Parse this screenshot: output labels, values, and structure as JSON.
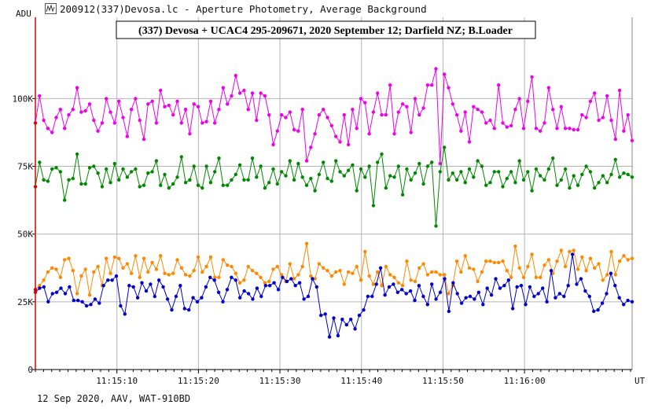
{
  "window": {
    "title": "200912(337)Devosa.lc - Aperture Photometry, Average Background",
    "icon": "lightcurve-window-icon"
  },
  "footer": "12 Sep 2020, AAV, WAT-910BD",
  "chart_data": {
    "type": "line",
    "title": "(337) Devosa + UCAC4 295-209671, 2020 September 12;  Darfield NZ;  B.Loader",
    "ylabel": "ADU",
    "xlabel": "UT",
    "ylim": [
      0,
      130000
    ],
    "y_ticks": [
      0,
      25000,
      50000,
      75000,
      100000
    ],
    "y_tick_labels": [
      "0",
      "25K",
      "50K",
      "75K",
      "100K"
    ],
    "xlim": [
      0,
      73.2
    ],
    "x_ticks": [
      10,
      20,
      30,
      40,
      50,
      60
    ],
    "x_tick_labels": [
      "11:15:10",
      "11:15:20",
      "11:15:30",
      "11:15:40",
      "11:15:50",
      "11:16:00"
    ],
    "x_minor_step": 1,
    "grid": true,
    "cursor_color": "#dd0000",
    "series": [
      {
        "color": "#ee00ee",
        "values": [
          91000,
          101000,
          92000,
          89000,
          87500,
          93000,
          96000,
          89000,
          94000,
          96000,
          104000,
          95000,
          95500,
          98000,
          92000,
          88000,
          91000,
          100000,
          95000,
          91000,
          99000,
          93000,
          86000,
          96000,
          100000,
          92000,
          85000,
          98000,
          99000,
          91000,
          103000,
          97000,
          97500,
          94000,
          99000,
          91000,
          96000,
          87000,
          98000,
          97000,
          91000,
          91500,
          99000,
          91000,
          96000,
          104000,
          98000,
          101000,
          108500,
          102000,
          103000,
          96000,
          102000,
          92000,
          102000,
          101000,
          94000,
          83000,
          88000,
          94000,
          93000,
          95000,
          88500,
          88000,
          96000,
          77000,
          82000,
          87000,
          94000,
          96000,
          93000,
          90000,
          86000,
          84000,
          94000,
          83000,
          96000,
          89000,
          100000,
          98500,
          87000,
          95000,
          102000,
          94000,
          94000,
          105000,
          87000,
          95000,
          98000,
          97000,
          87500,
          100000,
          94000,
          96500,
          105000,
          105000,
          111000,
          76000,
          109000,
          104000,
          98000,
          94000,
          88000,
          95000,
          84000,
          97000,
          96000,
          95000,
          91000,
          92000,
          89000,
          105000,
          91000,
          89500,
          90000,
          96000,
          100000,
          89000,
          99000,
          108000,
          89000,
          88000,
          91000,
          104000,
          96000,
          89000,
          97000,
          89000,
          89000,
          88500,
          88500,
          94000,
          93000,
          99000,
          102000,
          92000,
          93000,
          101000,
          92000,
          85000,
          103000,
          88000,
          94000,
          84500
        ]
      },
      {
        "color": "#008800",
        "values": [
          67500,
          76500,
          70000,
          69500,
          74000,
          74500,
          73000,
          62500,
          70000,
          70500,
          79500,
          68500,
          68500,
          74500,
          75000,
          72500,
          67500,
          74000,
          69000,
          76000,
          70000,
          74000,
          71000,
          73000,
          74000,
          67500,
          68000,
          72500,
          73000,
          77000,
          68000,
          72000,
          67000,
          68500,
          71000,
          78500,
          69000,
          70000,
          75000,
          68000,
          67000,
          75000,
          69000,
          73000,
          78000,
          68000,
          68000,
          70000,
          72000,
          75500,
          70000,
          70000,
          78000,
          71000,
          75000,
          67000,
          69000,
          74000,
          68500,
          73000,
          71500,
          77000,
          70000,
          76000,
          71000,
          68000,
          70500,
          66000,
          72000,
          76500,
          70500,
          69500,
          77000,
          73000,
          71500,
          73500,
          75500,
          66000,
          74000,
          71000,
          75000,
          60500,
          76500,
          79500,
          67000,
          71500,
          71000,
          75000,
          64500,
          74000,
          70000,
          72500,
          76000,
          68500,
          75000,
          76500,
          53000,
          73000,
          82000,
          70000,
          72500,
          70000,
          73000,
          69000,
          74000,
          71000,
          77000,
          75000,
          68000,
          69000,
          73000,
          73000,
          67500,
          70500,
          73000,
          69000,
          77000,
          70000,
          73000,
          66000,
          74000,
          71500,
          70000,
          74000,
          78000,
          68000,
          70000,
          74000,
          67000,
          71500,
          68000,
          72000,
          75000,
          73000,
          67000,
          69000,
          71500,
          69000,
          72000,
          77500,
          71000,
          72500,
          72000,
          71000
        ]
      },
      {
        "color": "#ff8800",
        "values": [
          29500,
          31000,
          33000,
          36000,
          37500,
          37000,
          34000,
          40500,
          41000,
          36500,
          28000,
          34500,
          37000,
          27500,
          36000,
          38000,
          31000,
          41000,
          35500,
          41500,
          41000,
          37500,
          39000,
          35500,
          42000,
          34000,
          41000,
          36000,
          39500,
          37000,
          42000,
          35500,
          35000,
          35500,
          40500,
          37500,
          35000,
          34500,
          36500,
          41500,
          36000,
          38000,
          41500,
          34000,
          34000,
          40500,
          38500,
          38000,
          35500,
          32000,
          33000,
          38000,
          36500,
          35500,
          34000,
          32000,
          32500,
          37000,
          38000,
          35000,
          32500,
          39000,
          33500,
          35000,
          38000,
          46500,
          34500,
          33500,
          39000,
          37500,
          36500,
          34500,
          36000,
          36500,
          31500,
          36000,
          35500,
          38000,
          33000,
          43500,
          34500,
          31500,
          36000,
          31000,
          38000,
          35000,
          34000,
          32000,
          31000,
          40000,
          33000,
          32500,
          37500,
          39000,
          35000,
          36000,
          36000,
          35000,
          35000,
          28000,
          31000,
          40000,
          36000,
          42000,
          37500,
          37000,
          32500,
          36000,
          40000,
          40000,
          39500,
          39500,
          40000,
          36500,
          34000,
          45500,
          37500,
          34000,
          38000,
          42500,
          34000,
          34000,
          38500,
          40500,
          35500,
          40000,
          44000,
          38000,
          43500,
          44000,
          37000,
          41500,
          36500,
          41000,
          37500,
          39000,
          33000,
          35000,
          43500,
          35000,
          40000,
          42000,
          40500,
          41000
        ]
      },
      {
        "color": "#0000cc",
        "values": [
          28500,
          30000,
          30500,
          25000,
          28000,
          28500,
          30000,
          28000,
          30500,
          25500,
          25500,
          25000,
          23500,
          24000,
          26000,
          24500,
          31000,
          33000,
          33000,
          34500,
          23500,
          20500,
          31000,
          30500,
          26500,
          32000,
          29000,
          31500,
          27000,
          33000,
          30500,
          26000,
          22000,
          27000,
          31000,
          22500,
          22000,
          26500,
          25000,
          26500,
          30500,
          34000,
          33000,
          28500,
          25000,
          29500,
          34000,
          33000,
          26500,
          29000,
          28000,
          26000,
          30000,
          27000,
          31000,
          31000,
          32000,
          29500,
          34000,
          32500,
          33500,
          31000,
          32000,
          26000,
          27000,
          33500,
          30500,
          20000,
          20500,
          12000,
          19000,
          12500,
          18500,
          16500,
          18500,
          15000,
          20000,
          22000,
          27000,
          27000,
          31500,
          37500,
          27500,
          30500,
          31500,
          28500,
          29500,
          28000,
          29000,
          25500,
          31000,
          27000,
          24000,
          31500,
          26000,
          28500,
          33500,
          21500,
          32000,
          28000,
          24500,
          26500,
          27000,
          26000,
          28500,
          24000,
          30000,
          27500,
          33500,
          30000,
          31000,
          33000,
          22500,
          30500,
          31000,
          24000,
          30500,
          27000,
          28000,
          30000,
          25000,
          36500,
          26500,
          28000,
          27000,
          31000,
          42500,
          31500,
          33500,
          29000,
          27000,
          21500,
          22000,
          24500,
          28000,
          35500,
          31000,
          26500,
          24000,
          25500,
          25000
        ]
      }
    ]
  }
}
